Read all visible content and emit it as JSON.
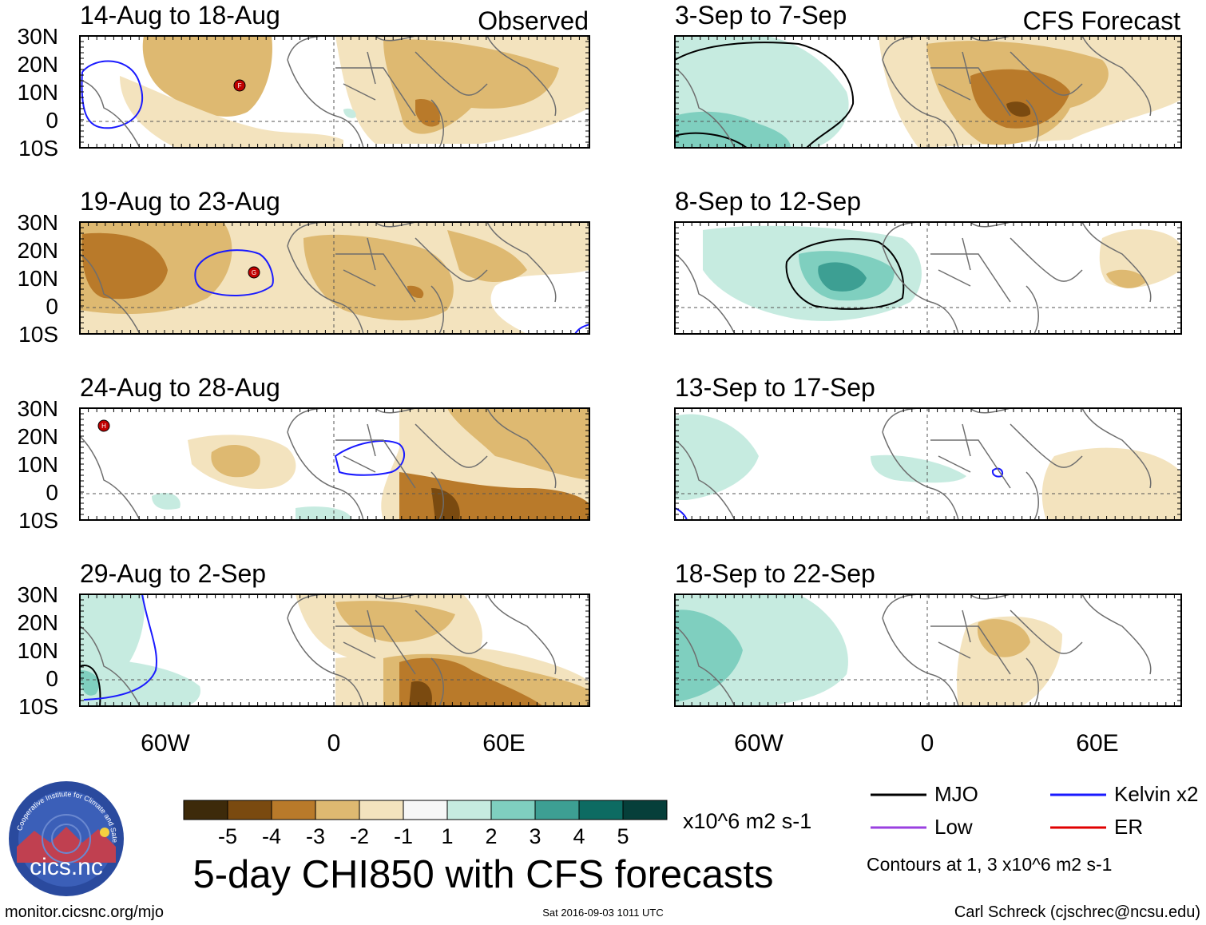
{
  "figure": {
    "title": "5-day CHI850 with CFS forecasts",
    "left_header": "Observed",
    "right_header": "CFS Forecast",
    "footer_left": "monitor.cicsnc.org/mjo",
    "footer_center": "Sat 2016-09-03 1011 UTC",
    "footer_right": "Carl Schreck (cjschrec@ncsu.edu)",
    "logo_text": "cics.nc",
    "logo_ring_text": "Cooperative Institute for Climate and Satellites",
    "units": "x10^6 m2 s-1",
    "contour_note": "Contours at 1, 3 x10^6 m2 s-1"
  },
  "panels": [
    {
      "period": "14-Aug to 18-Aug",
      "kind": "observed",
      "storm_label": "F"
    },
    {
      "period": "19-Aug to 23-Aug",
      "kind": "observed",
      "storm_label": "G"
    },
    {
      "period": "24-Aug to 28-Aug",
      "kind": "observed",
      "storm_label": "H"
    },
    {
      "period": "29-Aug to 2-Sep",
      "kind": "observed"
    },
    {
      "period": "3-Sep to 7-Sep",
      "kind": "forecast"
    },
    {
      "period": "8-Sep to 12-Sep",
      "kind": "forecast"
    },
    {
      "period": "13-Sep to 17-Sep",
      "kind": "forecast"
    },
    {
      "period": "18-Sep to 22-Sep",
      "kind": "forecast"
    }
  ],
  "axes": {
    "lat_labels": [
      "30N",
      "20N",
      "10N",
      "0",
      "10S"
    ],
    "lon_labels": [
      "60W",
      "0",
      "60E"
    ]
  },
  "colorbar": {
    "ticks": [
      "-5",
      "-4",
      "-3",
      "-2",
      "-1",
      "1",
      "2",
      "3",
      "4",
      "5"
    ],
    "colors": [
      "#3d2a0a",
      "#7a4a10",
      "#b97a2a",
      "#deb971",
      "#f3e3be",
      "#f7f7f7",
      "#c6ebe0",
      "#7fcfbf",
      "#3d9f93",
      "#0d6b62",
      "#063f3a"
    ]
  },
  "legend": {
    "items": [
      {
        "label": "MJO",
        "color": "#000000"
      },
      {
        "label": "Kelvin x2",
        "color": "#1a1aff"
      },
      {
        "label": "Low",
        "color": "#9a40e0"
      },
      {
        "label": "ER",
        "color": "#e00000"
      }
    ]
  }
}
